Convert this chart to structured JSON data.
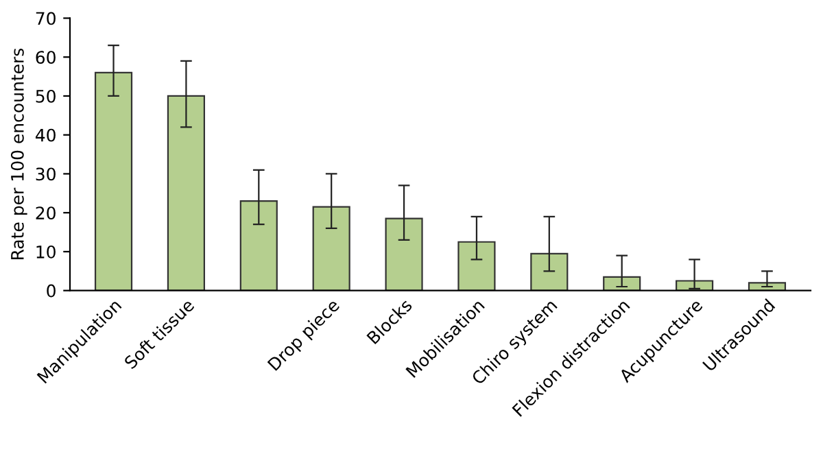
{
  "chart_data": {
    "type": "bar",
    "ylabel": "Rate per 100 encounters",
    "categories": [
      "Manipulation",
      "Soft tissue",
      null,
      "Drop piece",
      "Blocks",
      "Mobilisation",
      "Chiro system",
      "Flexion distraction",
      "Acupuncture",
      "Ultrasound"
    ],
    "values": [
      56,
      50,
      23,
      21.5,
      18.5,
      12.5,
      9.5,
      3.5,
      2.5,
      2
    ],
    "errors": [
      [
        50,
        63
      ],
      [
        42,
        59
      ],
      [
        17,
        31
      ],
      [
        16,
        30
      ],
      [
        13,
        27
      ],
      [
        8,
        19
      ],
      [
        5,
        19
      ],
      [
        1,
        9
      ],
      [
        0.5,
        8
      ],
      [
        1,
        5
      ]
    ],
    "color": "#b5cf8f",
    "ylim": [
      0,
      70
    ],
    "yticks": [
      0,
      10,
      20,
      30,
      40,
      50,
      60,
      70
    ],
    "grid": false
  }
}
